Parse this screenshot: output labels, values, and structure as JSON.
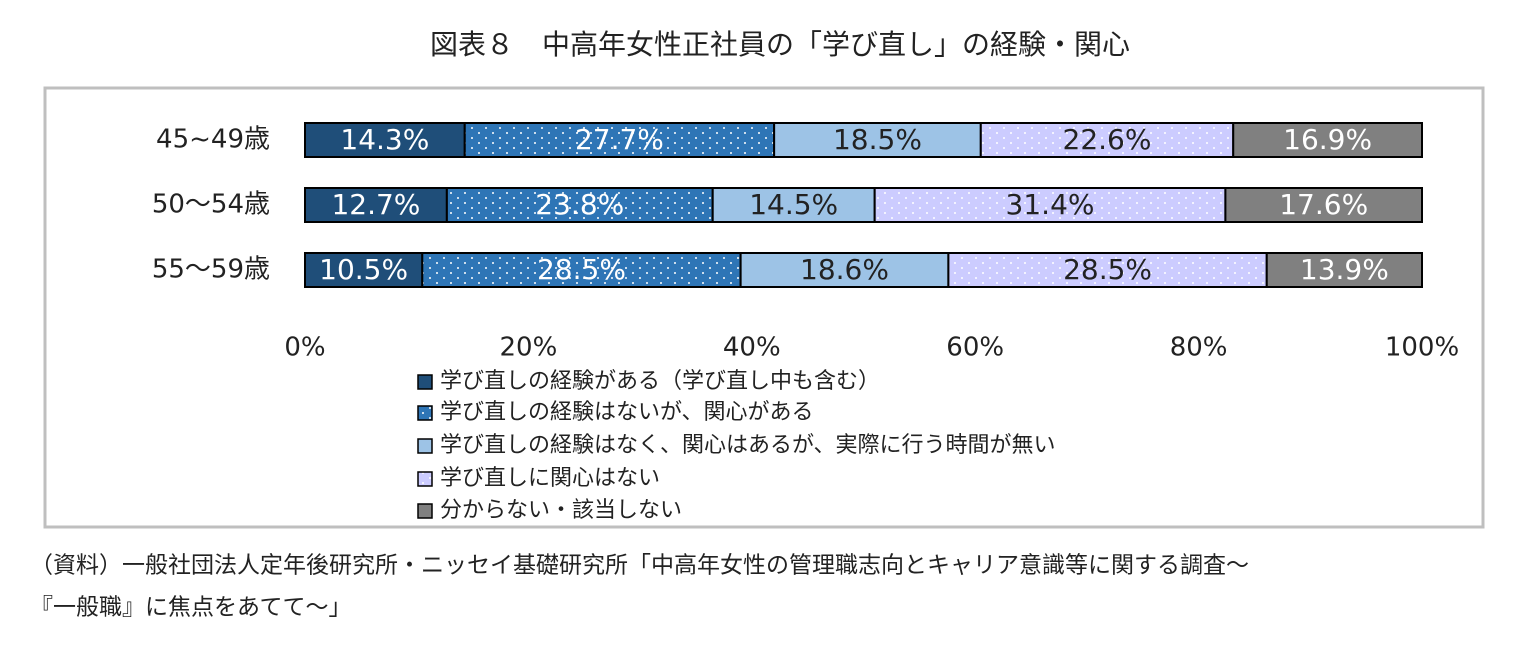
{
  "chart_data": {
    "type": "stacked_barh",
    "title": "図表８　中高年女性正社員の「学び直し」の経験・関心",
    "categories": [
      "45~49歳",
      "50～54歳",
      "55～59歳"
    ],
    "series": [
      {
        "name": "学び直しの経験がある（学び直し中も含む）",
        "color": "#1f4e79",
        "pattern": "solid",
        "values": [
          14.3,
          12.7,
          10.5
        ],
        "value_labels": [
          "14.3%",
          "12.7%",
          "10.5%"
        ]
      },
      {
        "name": "学び直しの経験はないが、関心がある",
        "color": "#2e75b6",
        "pattern": "dots",
        "values": [
          27.7,
          23.8,
          28.5
        ],
        "value_labels": [
          "27.7%",
          "23.8%",
          "28.5%"
        ]
      },
      {
        "name": "学び直しの経験はなく、関心はあるが、実際に行う時間が無い",
        "color": "#9dc3e6",
        "pattern": "solid",
        "values": [
          18.5,
          14.5,
          18.6
        ],
        "value_labels": [
          "18.5%",
          "14.5%",
          "18.6%"
        ]
      },
      {
        "name": "学び直しに関心はない",
        "color": "#ccccff",
        "pattern": "dots",
        "values": [
          22.6,
          31.4,
          28.5
        ],
        "value_labels": [
          "22.6%",
          "31.4%",
          "28.5%"
        ]
      },
      {
        "name": "分からない・該当しない",
        "color": "#808080",
        "pattern": "solid",
        "values": [
          16.9,
          17.6,
          13.9
        ],
        "value_labels": [
          "16.9%",
          "17.6%",
          "13.9%"
        ]
      }
    ],
    "xlim": [
      0,
      100
    ],
    "xticks": [
      {
        "value": 0,
        "label": "0%"
      },
      {
        "value": 20,
        "label": "20%"
      },
      {
        "value": 40,
        "label": "40%"
      },
      {
        "value": 60,
        "label": "60%"
      },
      {
        "value": 80,
        "label": "80%"
      },
      {
        "value": 100,
        "label": "100%"
      }
    ],
    "legend": "bottom",
    "note": [
      "（資料）一般社団法人定年後研究所・ニッセイ基礎研究所「中高年女性の管理職志向とキャリア意識等に関する調査～",
      "『一般職』に焦点をあてて～」"
    ]
  }
}
